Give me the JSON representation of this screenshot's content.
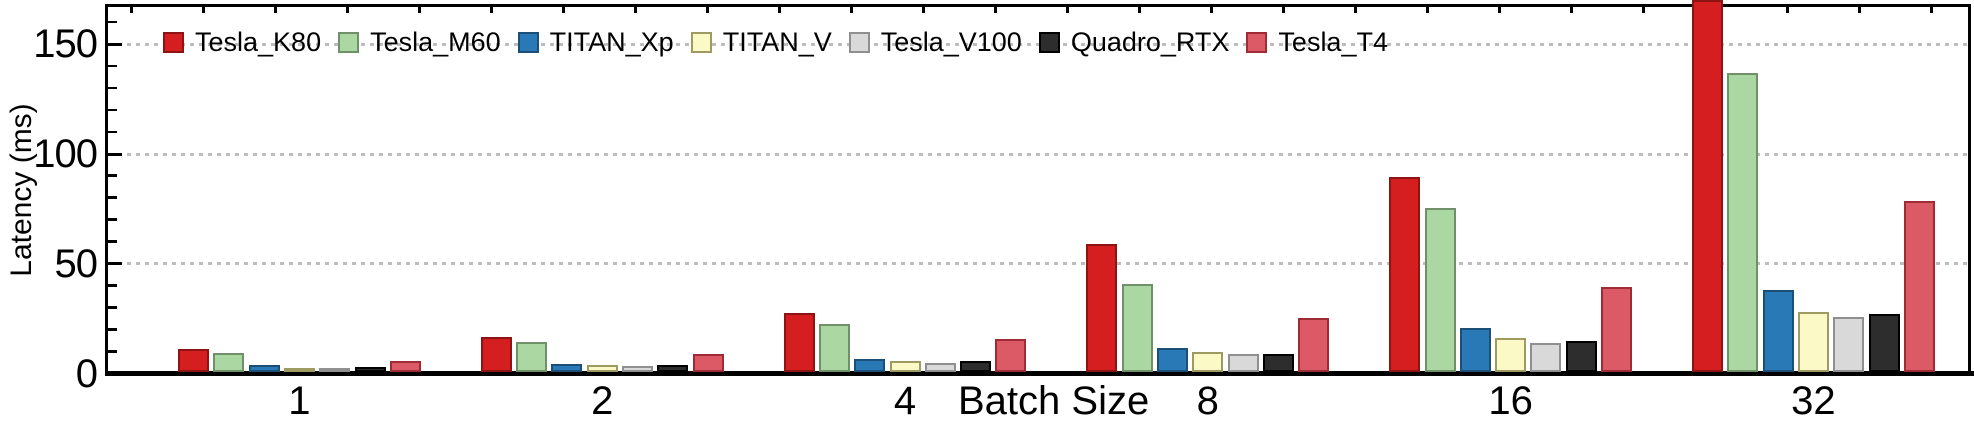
{
  "chart": {
    "ylabel": "Latency (ms)",
    "xlabel": "Batch Size",
    "background_color": "#ffffff",
    "axis_color": "#000000",
    "gridline_color": "#bdbdbd"
  },
  "chart_data": {
    "type": "bar",
    "title": "",
    "xlabel": "Batch Size",
    "ylabel": "Latency (ms)",
    "categories": [
      "1",
      "2",
      "4",
      "8",
      "16",
      "32"
    ],
    "series": [
      {
        "name": "Tesla_K80",
        "color": "#d41e20",
        "edge": "#8e1414",
        "values": [
          10.5,
          16,
          27,
          58.5,
          89,
          170
        ]
      },
      {
        "name": "Tesla_M60",
        "color": "#abd8a2",
        "edge": "#6f9068",
        "values": [
          8.5,
          13.5,
          22,
          40,
          74.5,
          136
        ]
      },
      {
        "name": "TITAN_Xp",
        "color": "#2879b6",
        "edge": "#1b4f77",
        "values": [
          3,
          3.5,
          6,
          11,
          20,
          37.5
        ]
      },
      {
        "name": "TITAN_V",
        "color": "#fbf9c6",
        "edge": "#9e9a62",
        "values": [
          2,
          3,
          5,
          9,
          15.5,
          27.5
        ]
      },
      {
        "name": "Tesla_V100",
        "color": "#d9d9d9",
        "edge": "#8f8f8f",
        "values": [
          1.7,
          2.8,
          4.3,
          8,
          13,
          25
        ]
      },
      {
        "name": "Quadro_RTX",
        "color": "#2d2d2d",
        "edge": "#000000",
        "values": [
          2.4,
          3.1,
          5.1,
          8.4,
          14,
          26.5
        ]
      },
      {
        "name": "Tesla_T4",
        "color": "#dc5a65",
        "edge": "#9e2b35",
        "values": [
          5,
          8,
          15,
          24.5,
          38.5,
          78
        ]
      }
    ],
    "yticks": [
      0,
      50,
      100,
      150
    ],
    "minor_ytick_step": 10,
    "ylim": [
      0,
      168
    ],
    "grid": "horizontal dotted lines at 50, 100, 150",
    "legend_position": "top inside plot",
    "clipped_note": "Tesla_K80 bar at batch size 32 exceeds the y-axis top and is clipped"
  }
}
